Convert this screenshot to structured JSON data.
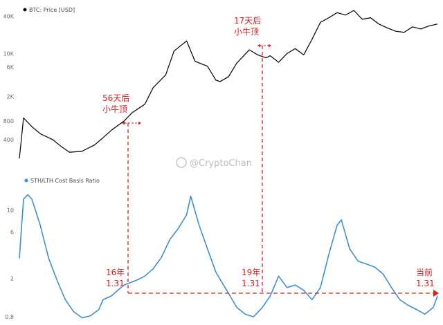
{
  "chart_data": [
    {
      "type": "line",
      "title": "BTC: Price [USD]",
      "scale": "log",
      "color": "#111111",
      "yticks": [
        "40K",
        "10K",
        "6K",
        "2K",
        "800",
        "400"
      ],
      "ytick_values": [
        40000,
        10000,
        6000,
        2000,
        800,
        400
      ],
      "ylim": [
        150,
        60000
      ],
      "x": [
        0,
        0.01,
        0.03,
        0.05,
        0.08,
        0.1,
        0.12,
        0.15,
        0.18,
        0.2,
        0.22,
        0.25,
        0.27,
        0.3,
        0.32,
        0.35,
        0.37,
        0.4,
        0.42,
        0.45,
        0.47,
        0.48,
        0.5,
        0.52,
        0.55,
        0.57,
        0.59,
        0.6,
        0.62,
        0.64,
        0.66,
        0.68,
        0.7,
        0.72,
        0.74,
        0.76,
        0.78,
        0.8,
        0.82,
        0.84,
        0.86,
        0.88,
        0.9,
        0.92,
        0.94,
        0.96,
        0.98,
        1.0
      ],
      "values": [
        200,
        900,
        650,
        500,
        400,
        310,
        250,
        260,
        330,
        430,
        570,
        800,
        1100,
        1500,
        2800,
        4500,
        11000,
        16000,
        7500,
        6200,
        3700,
        3500,
        4200,
        7000,
        11500,
        9500,
        8500,
        9200,
        7200,
        10000,
        12000,
        9500,
        17000,
        32000,
        38000,
        46000,
        42000,
        50000,
        36000,
        38000,
        30000,
        26000,
        23000,
        22000,
        27000,
        25000,
        28000,
        30000
      ]
    },
    {
      "type": "line",
      "title": "STH/LTH Cost Basis Ratio",
      "scale": "log",
      "color": "#3a8fd6",
      "yticks": [
        "10",
        "6",
        "2",
        "0.8"
      ],
      "ytick_values": [
        10,
        6,
        2,
        0.8
      ],
      "ylim": [
        0.75,
        20
      ],
      "x": [
        0,
        0.01,
        0.02,
        0.03,
        0.05,
        0.07,
        0.09,
        0.11,
        0.13,
        0.15,
        0.17,
        0.19,
        0.2,
        0.22,
        0.25,
        0.28,
        0.3,
        0.32,
        0.34,
        0.36,
        0.38,
        0.4,
        0.41,
        0.43,
        0.45,
        0.47,
        0.5,
        0.52,
        0.54,
        0.56,
        0.58,
        0.6,
        0.62,
        0.64,
        0.66,
        0.68,
        0.7,
        0.72,
        0.74,
        0.76,
        0.77,
        0.79,
        0.81,
        0.83,
        0.85,
        0.87,
        0.89,
        0.91,
        0.93,
        0.95,
        0.97,
        0.99,
        1.0
      ],
      "values": [
        3.2,
        13,
        14.5,
        13,
        7,
        3.2,
        1.9,
        1.2,
        0.9,
        0.78,
        0.82,
        0.95,
        1.2,
        1.31,
        1.7,
        1.9,
        2.1,
        2.5,
        3.3,
        5,
        6.5,
        9,
        14,
        7,
        4,
        2.3,
        1.4,
        1,
        0.85,
        0.8,
        0.98,
        1.31,
        2.1,
        1.6,
        1.7,
        1.5,
        1.2,
        1.6,
        3.5,
        7,
        8,
        4,
        3,
        2.8,
        2.6,
        2.2,
        1.6,
        1.2,
        1.05,
        0.95,
        0.85,
        1,
        1.31
      ]
    }
  ],
  "annotations": {
    "a56_line1": "56天后",
    "a56_line2": "小牛顶",
    "a17_line1": "17天后",
    "a17_line2": "小牛顶",
    "y16_line1": "16年",
    "y16_line2": "1.31",
    "y19_line1": "19年",
    "y19_line2": "1.31",
    "now_line1": "当前",
    "now_line2": "1.31"
  },
  "watermark": "@CryptoChan",
  "colors": {
    "annotation": "#d81e1e",
    "price": "#111111",
    "ratio": "#3a8fd6"
  }
}
